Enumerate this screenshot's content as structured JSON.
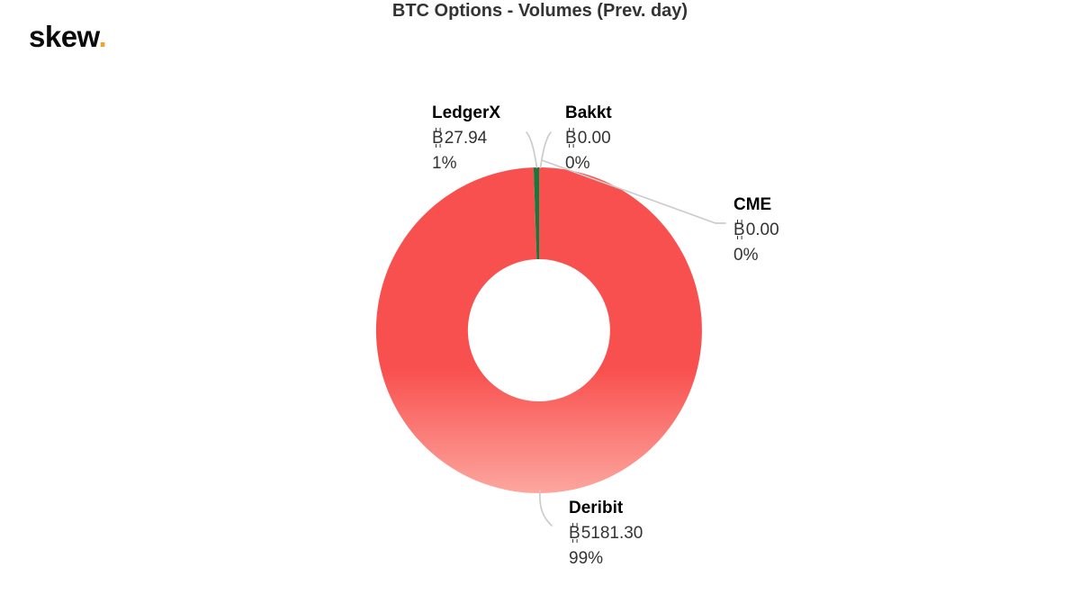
{
  "page": {
    "background": "#ffffff"
  },
  "logo": {
    "text": "skew",
    "dot": ".",
    "dot_color": "#efa32d"
  },
  "chart_data": {
    "type": "pie",
    "subtype": "donut",
    "title": "BTC Options - Volumes (Prev. day)",
    "currency_symbol": "₿",
    "legend": "none",
    "inner_radius_ratio": 0.44,
    "series": [
      {
        "name": "Deribit",
        "value": 5181.3,
        "value_text": "5181.30",
        "share": "99%",
        "color": "#f8504e",
        "color_bottom": "#fda69f"
      },
      {
        "name": "LedgerX",
        "value": 27.94,
        "value_text": "27.94",
        "share": "1%",
        "color": "#17783c"
      },
      {
        "name": "Bakkt",
        "value": 0.0,
        "value_text": "0.00",
        "share": "0%",
        "color": null
      },
      {
        "name": "CME",
        "value": 0.0,
        "value_text": "0.00",
        "share": "0%",
        "color": null
      }
    ],
    "colors": {
      "connector": "#cccccc",
      "title": "#333333",
      "label_name": "#000000",
      "label_value": "#333333"
    }
  }
}
